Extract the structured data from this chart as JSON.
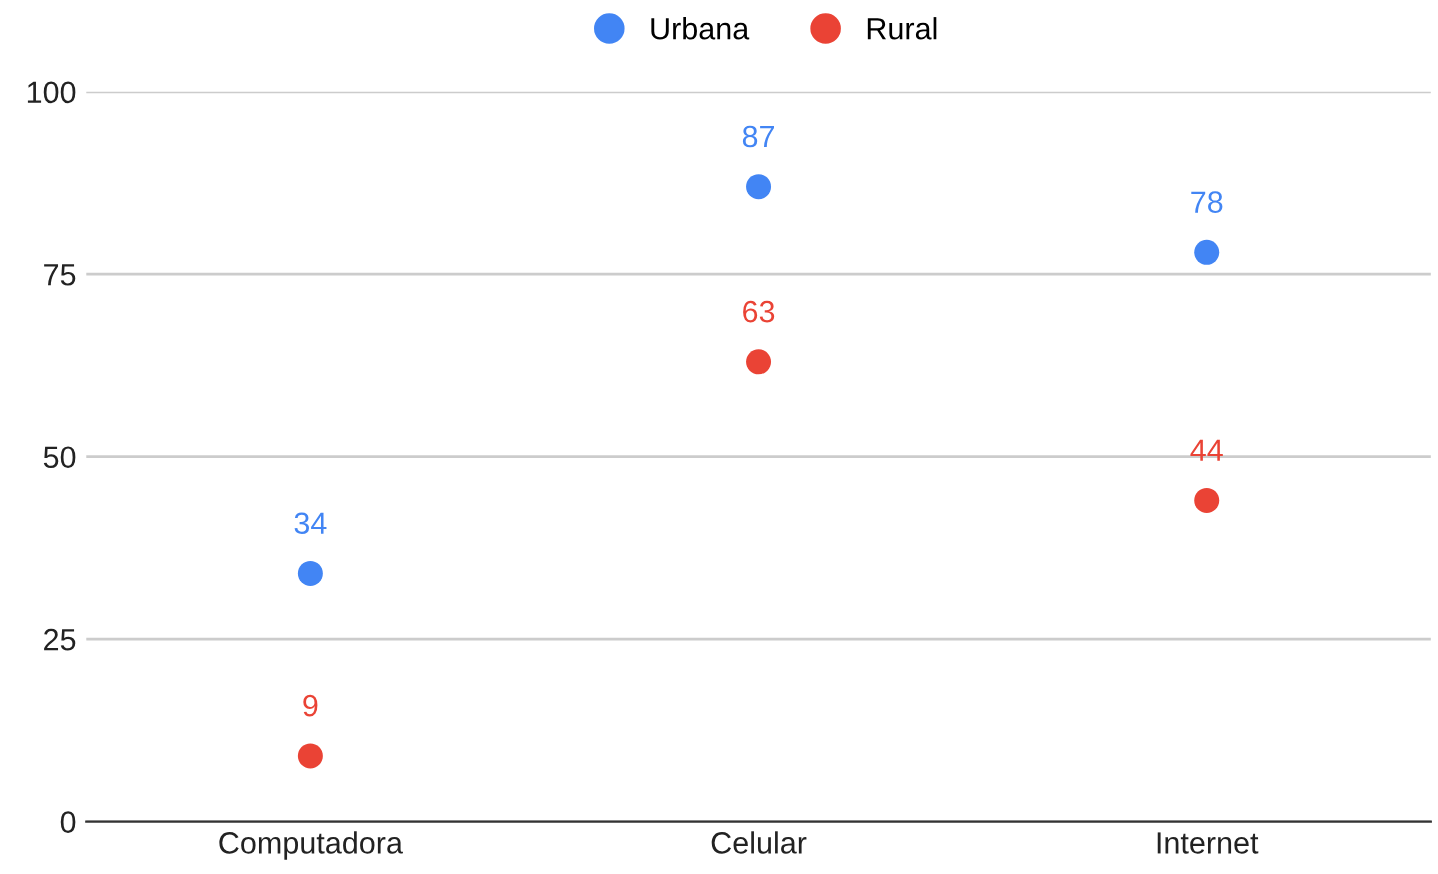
{
  "chart_data": {
    "type": "scatter",
    "categories": [
      "Computadora",
      "Celular",
      "Internet"
    ],
    "series": [
      {
        "name": "Urbana",
        "color": "#4285f4",
        "values": [
          34,
          87,
          78
        ]
      },
      {
        "name": "Rural",
        "color": "#ea4335",
        "values": [
          9,
          63,
          44
        ]
      }
    ],
    "ylim": [
      0,
      100
    ],
    "yticks": [
      0,
      25,
      50,
      75,
      100
    ],
    "grid": "y",
    "legend": "top",
    "marker": "circle",
    "data_labels": true
  }
}
